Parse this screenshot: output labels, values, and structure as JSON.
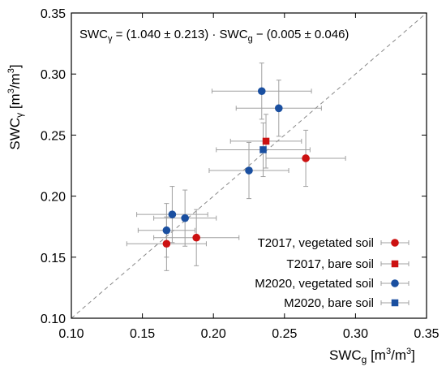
{
  "chart_data": {
    "type": "scatter",
    "xlim": [
      0.1,
      0.35
    ],
    "ylim": [
      0.1,
      0.35
    ],
    "x_ticks": [
      "0.10",
      "0.15",
      "0.20",
      "0.25",
      "0.30",
      "0.35"
    ],
    "y_ticks": [
      "0.10",
      "0.15",
      "0.20",
      "0.25",
      "0.30",
      "0.35"
    ],
    "xlabel": {
      "base": "SWC",
      "sub": "g",
      "unit_open": " [m",
      "unit_sup": "3",
      "unit_mid": "/m",
      "unit_sup2": "3",
      "unit_close": "]"
    },
    "ylabel": {
      "base": "SWC",
      "sub": "γ",
      "unit_open": " [m",
      "unit_sup": "3",
      "unit_mid": "/m",
      "unit_sup2": "3",
      "unit_close": "]"
    },
    "annotation": {
      "lhs": "SWC",
      "lhs_sub": "γ",
      "middle": " = (1.040 ± 0.213) · SWC",
      "mid_sub": "g",
      "tail": " − (0.005 ± 0.046)"
    },
    "reference_line": {
      "style": "dashed",
      "color": "#888888",
      "from": [
        0.1,
        0.1
      ],
      "to": [
        0.35,
        0.35
      ]
    },
    "grid": false,
    "legend_position": "bottom-right",
    "series": [
      {
        "name": "T2017, vegetated soil",
        "marker": "circle",
        "color": "#cc1111",
        "points": [
          {
            "x": 0.167,
            "y": 0.161,
            "xerr": 0.028,
            "yerr": 0.022
          },
          {
            "x": 0.188,
            "y": 0.166,
            "xerr": 0.03,
            "yerr": 0.023
          },
          {
            "x": 0.265,
            "y": 0.231,
            "xerr": 0.028,
            "yerr": 0.023
          }
        ]
      },
      {
        "name": "T2017, bare soil",
        "marker": "square",
        "color": "#cc1111",
        "points": [
          {
            "x": 0.237,
            "y": 0.245,
            "xerr": 0.025,
            "yerr": 0.022
          }
        ]
      },
      {
        "name": "M2020, vegetated soil",
        "marker": "circle",
        "color": "#1a4fa0",
        "points": [
          {
            "x": 0.167,
            "y": 0.172,
            "xerr": 0.02,
            "yerr": 0.022
          },
          {
            "x": 0.171,
            "y": 0.185,
            "xerr": 0.025,
            "yerr": 0.023
          },
          {
            "x": 0.18,
            "y": 0.182,
            "xerr": 0.022,
            "yerr": 0.023
          },
          {
            "x": 0.225,
            "y": 0.221,
            "xerr": 0.028,
            "yerr": 0.023
          },
          {
            "x": 0.234,
            "y": 0.286,
            "xerr": 0.035,
            "yerr": 0.023
          },
          {
            "x": 0.246,
            "y": 0.272,
            "xerr": 0.03,
            "yerr": 0.023
          }
        ]
      },
      {
        "name": "M2020, bare soil",
        "marker": "square",
        "color": "#1a4fa0",
        "points": [
          {
            "x": 0.235,
            "y": 0.238,
            "xerr": 0.033,
            "yerr": 0.022
          }
        ]
      }
    ]
  }
}
